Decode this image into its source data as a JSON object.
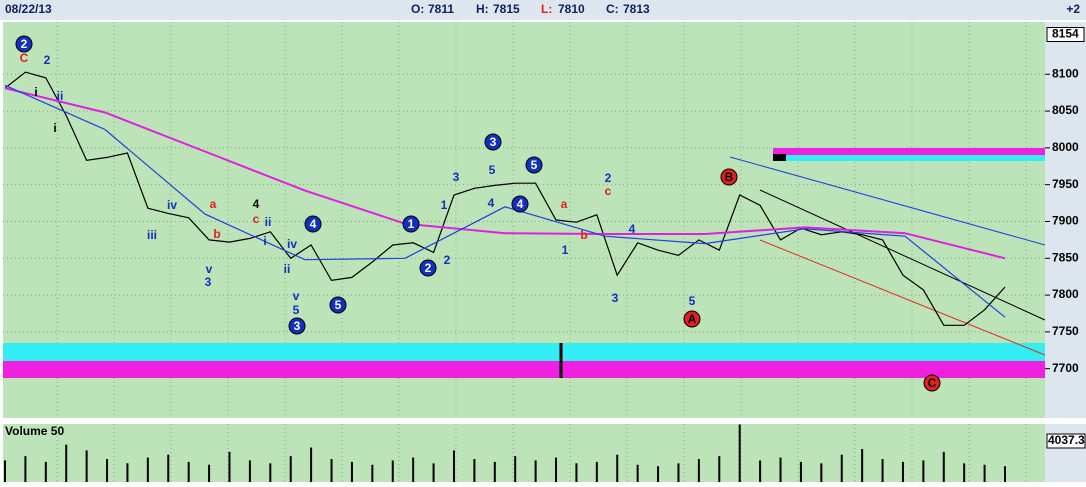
{
  "header": {
    "date": "08/22/13",
    "quote": [
      {
        "label": "O:",
        "value": 7811
      },
      {
        "label": "H:",
        "value": 7815
      },
      {
        "label": "L:",
        "value": 7810
      },
      {
        "label": "C:",
        "value": 7813
      }
    ],
    "change": "+2"
  },
  "chart_data": [
    {
      "type": "line",
      "ylim": [
        7633,
        8171
      ],
      "grid": true,
      "yticks": [
        8154,
        8100,
        8050,
        8000,
        7950,
        7900,
        7850,
        7800,
        7750,
        7700
      ],
      "series": [
        {
          "color": "#000000",
          "values": [
            8081,
            8103,
            8095,
            8044,
            7983,
            7987,
            7993,
            7918,
            7911,
            7905,
            7875,
            7872,
            7877,
            7886,
            7850,
            7868,
            7820,
            7824,
            7845,
            7868,
            7871,
            7858,
            7936,
            7945,
            7949,
            7952,
            7952,
            7902,
            7899,
            7909,
            7827,
            7871,
            7861,
            7854,
            7875,
            7861,
            7936,
            7922,
            7875,
            7891,
            7882,
            7886,
            7882,
            7875,
            7827,
            7807,
            7759,
            7759,
            7780,
            7811
          ]
        },
        {
          "color": "#e020e0",
          "values": [
            8081,
            8048,
            7995,
            7942,
            7897,
            7884,
            7883,
            7883,
            7892,
            7884,
            7850
          ]
        },
        {
          "color": "#2040e0",
          "values": [
            8085,
            8025,
            7910,
            7848,
            7850,
            7920,
            7880,
            7870,
            7890,
            7880,
            7770
          ]
        }
      ],
      "annotations": [
        {
          "text": "2",
          "style": "blue-circle"
        },
        {
          "text": "C",
          "style": "red"
        },
        {
          "text": "2",
          "style": "blue"
        },
        {
          "text": "i",
          "style": "black"
        },
        {
          "text": "ii",
          "style": "blue"
        },
        {
          "text": "i",
          "style": "black"
        },
        {
          "text": "iv",
          "style": "blue"
        },
        {
          "text": "iii",
          "style": "blue"
        },
        {
          "text": "a",
          "style": "red"
        },
        {
          "text": "b",
          "style": "red"
        },
        {
          "text": "v",
          "style": "blue"
        },
        {
          "text": "3",
          "style": "blue"
        },
        {
          "text": "4",
          "style": "black"
        },
        {
          "text": "c",
          "style": "red"
        },
        {
          "text": "ii",
          "style": "blue"
        },
        {
          "text": "i",
          "style": "blue"
        },
        {
          "text": "iv",
          "style": "blue"
        },
        {
          "text": "ii",
          "style": "blue"
        },
        {
          "text": "v",
          "style": "blue"
        },
        {
          "text": "5",
          "style": "blue"
        },
        {
          "text": "3",
          "style": "blue-circle"
        },
        {
          "text": "4",
          "style": "blue-circle"
        },
        {
          "text": "5",
          "style": "blue-circle"
        },
        {
          "text": "1",
          "style": "blue-circle"
        },
        {
          "text": "2",
          "style": "blue-circle"
        },
        {
          "text": "1",
          "style": "blue"
        },
        {
          "text": "2",
          "style": "blue"
        },
        {
          "text": "3",
          "style": "blue"
        },
        {
          "text": "5",
          "style": "blue"
        },
        {
          "text": "4",
          "style": "blue"
        },
        {
          "text": "3",
          "style": "blue-circle"
        },
        {
          "text": "5",
          "style": "blue-circle"
        },
        {
          "text": "4",
          "style": "blue-circle"
        },
        {
          "text": "a",
          "style": "red"
        },
        {
          "text": "b",
          "style": "red"
        },
        {
          "text": "1",
          "style": "blue"
        },
        {
          "text": "2",
          "style": "blue"
        },
        {
          "text": "c",
          "style": "red"
        },
        {
          "text": "4",
          "style": "blue"
        },
        {
          "text": "3",
          "style": "blue"
        },
        {
          "text": "5",
          "style": "blue"
        },
        {
          "text": "A",
          "style": "red-circle"
        },
        {
          "text": "B",
          "style": "red-circle"
        },
        {
          "text": "C",
          "style": "red-circle"
        }
      ]
    },
    {
      "type": "bar",
      "title": "Volume 50",
      "color": "#000000",
      "ylim": [
        0,
        4037.3
      ],
      "yticks": [
        4037.3
      ],
      "values": [
        1500,
        1800,
        1400,
        2600,
        2200,
        1600,
        1300,
        1700,
        1900,
        1400,
        1200,
        2100,
        1500,
        1300,
        1800,
        2400,
        1600,
        1400,
        1200,
        1500,
        1700,
        1300,
        2200,
        1600,
        1400,
        1800,
        1500,
        1700,
        1300,
        1400,
        1900,
        1200,
        1100,
        1300,
        1600,
        1800,
        4000,
        1500,
        1700,
        1400,
        1300,
        1900,
        2300,
        1600,
        1400,
        1500,
        2100,
        1300,
        1200,
        1100
      ]
    }
  ]
}
